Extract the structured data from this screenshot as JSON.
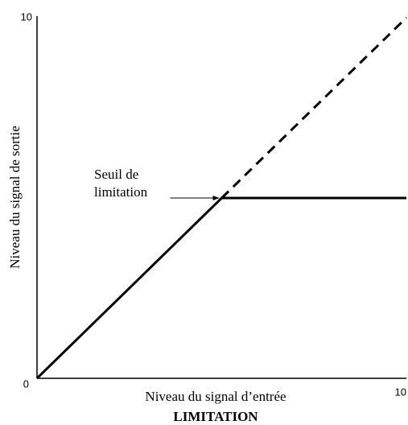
{
  "chart_data": {
    "type": "line",
    "title": "LIMITATION",
    "x_label": "Niveau du signal d’entrée",
    "y_label": "Niveau du signal de sortie",
    "xlim": [
      0,
      10
    ],
    "ylim": [
      0,
      10
    ],
    "xticks": [
      10
    ],
    "yticks": [
      0,
      10
    ],
    "series": [
      {
        "x": [
          0,
          5,
          10
        ],
        "values": [
          0,
          5,
          5
        ],
        "color": "#000000",
        "dashed": false
      },
      {
        "x": [
          5,
          10
        ],
        "values": [
          5,
          10
        ],
        "color": "#000000",
        "dashed": true
      }
    ],
    "annotation": {
      "lines": [
        "Seuil de",
        "limitation"
      ]
    }
  }
}
